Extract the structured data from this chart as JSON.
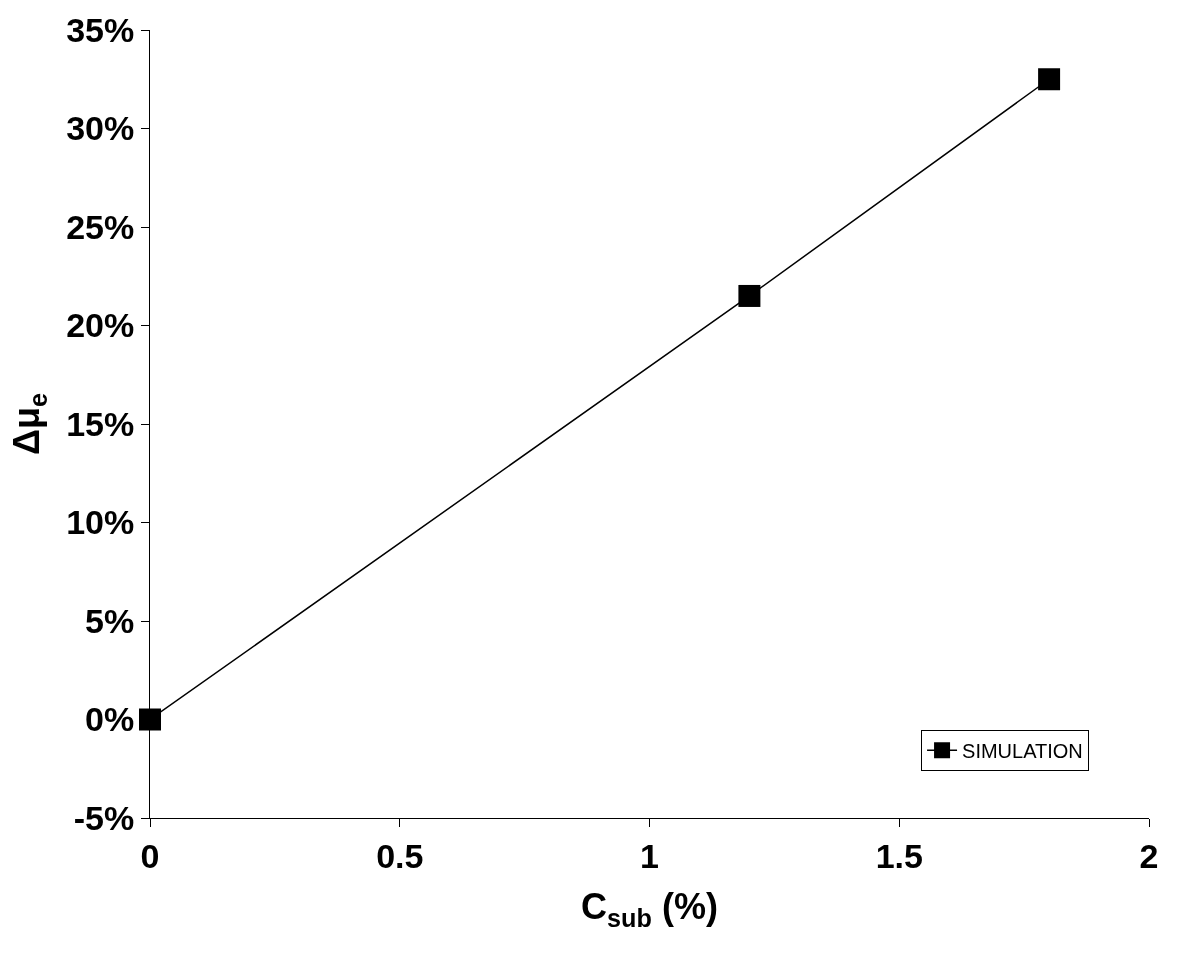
{
  "chart_data": {
    "type": "line",
    "xlabel": "C$_{sub}$ (%)",
    "ylabel": "Δμ$_{e}$",
    "x": [
      0,
      1.2,
      1.8
    ],
    "series": [
      {
        "name": "SIMULATION",
        "color": "#000000",
        "values": [
          0,
          21.5,
          32.5
        ]
      }
    ],
    "xlim": [
      0,
      2
    ],
    "xticks": [
      0,
      0.5,
      1,
      1.5,
      2
    ],
    "ylim": [
      -5,
      35
    ],
    "yticks": [
      {
        "value": -5,
        "label": "-5%"
      },
      {
        "value": 0,
        "label": "0%"
      },
      {
        "value": 5,
        "label": "5%"
      },
      {
        "value": 10,
        "label": "10%"
      },
      {
        "value": 15,
        "label": "15%"
      },
      {
        "value": 20,
        "label": "20%"
      },
      {
        "value": 25,
        "label": "25%"
      },
      {
        "value": 30,
        "label": "30%"
      },
      {
        "value": 35,
        "label": "35%"
      }
    ],
    "grid": false,
    "legend": "bottom right",
    "marker": "square",
    "line_style": "solid"
  }
}
